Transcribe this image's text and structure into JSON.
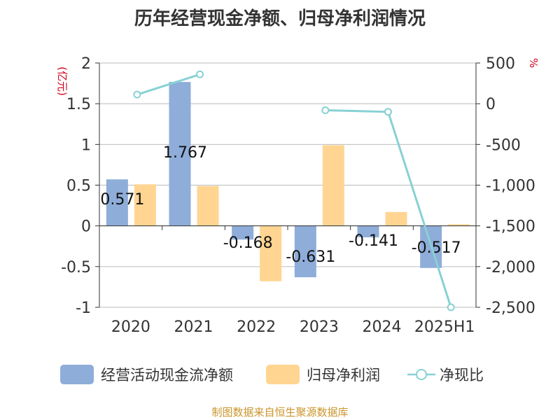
{
  "title": "历年经营现金净额、归母净利润情况",
  "source": "制图数据来自恒生聚源数据库",
  "colors": {
    "cash_flow": "#8eadd9",
    "net_profit": "#ffd591",
    "ratio": "#88d1d4",
    "axis_unit": "#d0021b",
    "grid": "#bbbbbb"
  },
  "chart_data": {
    "type": "bar",
    "title": "历年经营现金净额、归母净利润情况",
    "categories": [
      "2020",
      "2021",
      "2022",
      "2023",
      "2024",
      "2025H1"
    ],
    "y_left": {
      "label": "(亿元)",
      "range": [
        -1,
        2
      ],
      "ticks": [
        2,
        1.5,
        1,
        0.5,
        0,
        -0.5,
        -1
      ],
      "tick_labels": [
        "2",
        "1.5",
        "1",
        "0.5",
        "0",
        "-0.5",
        "-1"
      ]
    },
    "y_right": {
      "label": "%",
      "range": [
        -2500,
        500
      ],
      "ticks": [
        500,
        0,
        -500,
        -1000,
        -1500,
        -2000,
        -2500
      ],
      "tick_labels": [
        "500",
        "0",
        "-500",
        "-1,000",
        "-1,500",
        "-2,000",
        "-2,500"
      ]
    },
    "grid": true,
    "legend_position": "bottom",
    "series": [
      {
        "name": "经营活动现金流净额",
        "type": "bar",
        "axis": "left",
        "values": [
          0.571,
          1.767,
          -0.168,
          -0.631,
          -0.141,
          -0.517
        ],
        "data_labels": [
          "0.571",
          "1.767",
          "-0.168",
          "-0.631",
          "-0.141",
          "-0.517"
        ]
      },
      {
        "name": "归母净利润",
        "type": "bar",
        "axis": "left",
        "values": [
          0.51,
          0.49,
          -0.68,
          0.99,
          0.17,
          0.02
        ]
      },
      {
        "name": "净现比",
        "type": "line",
        "axis": "right",
        "values": [
          112,
          360,
          null,
          -80,
          -100,
          -2500
        ]
      }
    ]
  }
}
